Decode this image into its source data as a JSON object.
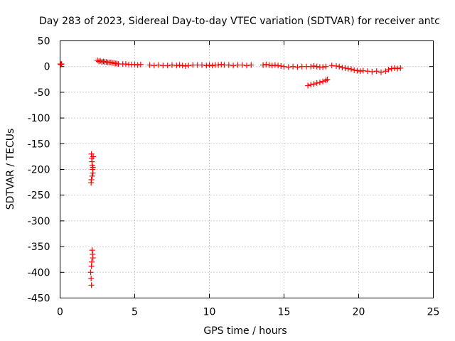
{
  "chart_data": {
    "type": "scatter",
    "title": "Day 283 of 2023, Sidereal Day-to-day VTEC variation (SDTVAR) for receiver antc",
    "xlabel": "GPS time / hours",
    "ylabel": "SDTVAR / TECUs",
    "xlim": [
      0,
      25
    ],
    "ylim": [
      -450,
      50
    ],
    "xticks": [
      0,
      5,
      10,
      15,
      20,
      25
    ],
    "xtick_labels": [
      "0",
      "5",
      "10",
      "15",
      "20",
      "25"
    ],
    "yticks": [
      50,
      0,
      -50,
      -100,
      -150,
      -200,
      -250,
      -300,
      -350,
      -400,
      -450
    ],
    "ytick_labels": [
      "50",
      "0",
      "-50",
      "-100",
      "-150",
      "-200",
      "-250",
      "-300",
      "-350",
      "-400",
      "-450"
    ],
    "grid": true,
    "marker": "+",
    "series_color": "#ff0000",
    "series": [
      {
        "name": "SDTVAR",
        "points": [
          [
            0.02,
            5
          ],
          [
            0.05,
            4
          ],
          [
            0.1,
            5
          ],
          [
            2.1,
            -170
          ],
          [
            2.12,
            -178
          ],
          [
            2.14,
            -185
          ],
          [
            2.16,
            -192
          ],
          [
            2.18,
            -200
          ],
          [
            2.2,
            -207
          ],
          [
            2.15,
            -213
          ],
          [
            2.1,
            -220
          ],
          [
            2.08,
            -226
          ],
          [
            2.22,
            -175
          ],
          [
            2.2,
            -196
          ],
          [
            2.15,
            -357
          ],
          [
            2.18,
            -365
          ],
          [
            2.2,
            -372
          ],
          [
            2.12,
            -380
          ],
          [
            2.1,
            -388
          ],
          [
            2.05,
            -400
          ],
          [
            2.08,
            -412
          ],
          [
            2.1,
            -425
          ],
          [
            2.5,
            12
          ],
          [
            2.6,
            10
          ],
          [
            2.7,
            11
          ],
          [
            2.8,
            9
          ],
          [
            2.9,
            10
          ],
          [
            3.0,
            9
          ],
          [
            3.1,
            9
          ],
          [
            3.2,
            8
          ],
          [
            3.3,
            8
          ],
          [
            3.4,
            8
          ],
          [
            3.5,
            7
          ],
          [
            3.6,
            7
          ],
          [
            3.7,
            6
          ],
          [
            3.8,
            6
          ],
          [
            3.9,
            5
          ],
          [
            4.2,
            5
          ],
          [
            4.4,
            5
          ],
          [
            4.6,
            4
          ],
          [
            4.8,
            4
          ],
          [
            5.0,
            4
          ],
          [
            5.2,
            3
          ],
          [
            5.4,
            4
          ],
          [
            6.0,
            3
          ],
          [
            6.3,
            2
          ],
          [
            6.6,
            3
          ],
          [
            6.9,
            2
          ],
          [
            7.2,
            2
          ],
          [
            7.5,
            3
          ],
          [
            7.8,
            2
          ],
          [
            8.0,
            3
          ],
          [
            8.2,
            2
          ],
          [
            8.4,
            1
          ],
          [
            8.6,
            2
          ],
          [
            8.9,
            3
          ],
          [
            9.2,
            3
          ],
          [
            9.5,
            3
          ],
          [
            9.8,
            2
          ],
          [
            10.0,
            3
          ],
          [
            10.2,
            2
          ],
          [
            10.4,
            3
          ],
          [
            10.6,
            3
          ],
          [
            10.8,
            4
          ],
          [
            11.0,
            3
          ],
          [
            11.3,
            3
          ],
          [
            11.6,
            2
          ],
          [
            11.9,
            3
          ],
          [
            12.2,
            3
          ],
          [
            12.5,
            2
          ],
          [
            12.8,
            3
          ],
          [
            13.6,
            3
          ],
          [
            13.8,
            4
          ],
          [
            14.0,
            3
          ],
          [
            14.2,
            2
          ],
          [
            14.4,
            3
          ],
          [
            14.6,
            2
          ],
          [
            14.8,
            1
          ],
          [
            15.0,
            0
          ],
          [
            15.3,
            -1
          ],
          [
            15.6,
            0
          ],
          [
            15.9,
            -1
          ],
          [
            16.2,
            0
          ],
          [
            16.5,
            0
          ],
          [
            16.8,
            0
          ],
          [
            17.0,
            1
          ],
          [
            17.2,
            0
          ],
          [
            17.4,
            -1
          ],
          [
            17.6,
            -1
          ],
          [
            17.8,
            0
          ],
          [
            16.6,
            -37
          ],
          [
            16.8,
            -35
          ],
          [
            17.0,
            -34
          ],
          [
            17.2,
            -32
          ],
          [
            17.4,
            -31
          ],
          [
            17.6,
            -29
          ],
          [
            17.8,
            -27
          ],
          [
            17.9,
            -25
          ],
          [
            18.2,
            2
          ],
          [
            18.5,
            1
          ],
          [
            18.7,
            0
          ],
          [
            18.9,
            -2
          ],
          [
            19.1,
            -3
          ],
          [
            19.3,
            -4
          ],
          [
            19.5,
            -5
          ],
          [
            19.7,
            -7
          ],
          [
            19.9,
            -8
          ],
          [
            20.1,
            -9
          ],
          [
            20.3,
            -8
          ],
          [
            20.6,
            -9
          ],
          [
            20.9,
            -10
          ],
          [
            21.2,
            -9
          ],
          [
            21.5,
            -11
          ],
          [
            21.8,
            -9
          ],
          [
            22.0,
            -6
          ],
          [
            22.2,
            -4
          ],
          [
            22.4,
            -3
          ],
          [
            22.6,
            -4
          ],
          [
            22.8,
            -3
          ]
        ]
      }
    ]
  }
}
